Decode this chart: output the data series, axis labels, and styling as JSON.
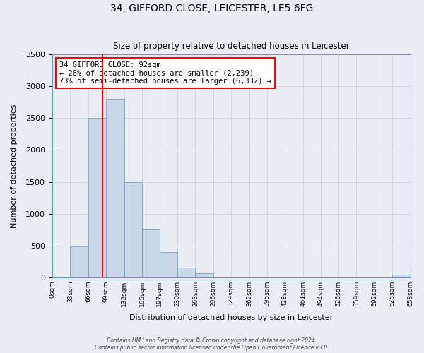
{
  "title1": "34, GIFFORD CLOSE, LEICESTER, LE5 6FG",
  "title2": "Size of property relative to detached houses in Leicester",
  "xlabel": "Distribution of detached houses by size in Leicester",
  "ylabel": "Number of detached properties",
  "bin_edges": [
    0,
    33,
    66,
    99,
    132,
    165,
    197,
    230,
    263,
    296,
    329,
    362,
    395,
    428,
    461,
    494,
    526,
    559,
    592,
    625,
    658
  ],
  "bin_labels": [
    "0sqm",
    "33sqm",
    "66sqm",
    "99sqm",
    "132sqm",
    "165sqm",
    "197sqm",
    "230sqm",
    "263sqm",
    "296sqm",
    "329sqm",
    "362sqm",
    "395sqm",
    "428sqm",
    "461sqm",
    "494sqm",
    "526sqm",
    "559sqm",
    "592sqm",
    "625sqm",
    "658sqm"
  ],
  "bar_heights": [
    5,
    480,
    2500,
    2800,
    1500,
    750,
    400,
    150,
    65,
    0,
    0,
    0,
    0,
    0,
    0,
    0,
    0,
    0,
    0,
    40
  ],
  "bar_color": "#c8d8e8",
  "bar_edgecolor": "#6699bb",
  "background_color": "#e8eef4",
  "grid_color": "#cccccc",
  "vline_x": 92,
  "vline_color": "red",
  "annotation_title": "34 GIFFORD CLOSE: 92sqm",
  "annotation_line1": "← 26% of detached houses are smaller (2,239)",
  "annotation_line2": "73% of semi-detached houses are larger (6,332) →",
  "annotation_box_edgecolor": "red",
  "ylim": [
    0,
    3500
  ],
  "yticks": [
    0,
    500,
    1000,
    1500,
    2000,
    2500,
    3000,
    3500
  ],
  "footer1": "Contains HM Land Registry data © Crown copyright and database right 2024.",
  "footer2": "Contains public sector information licensed under the Open Government Licence v3.0."
}
